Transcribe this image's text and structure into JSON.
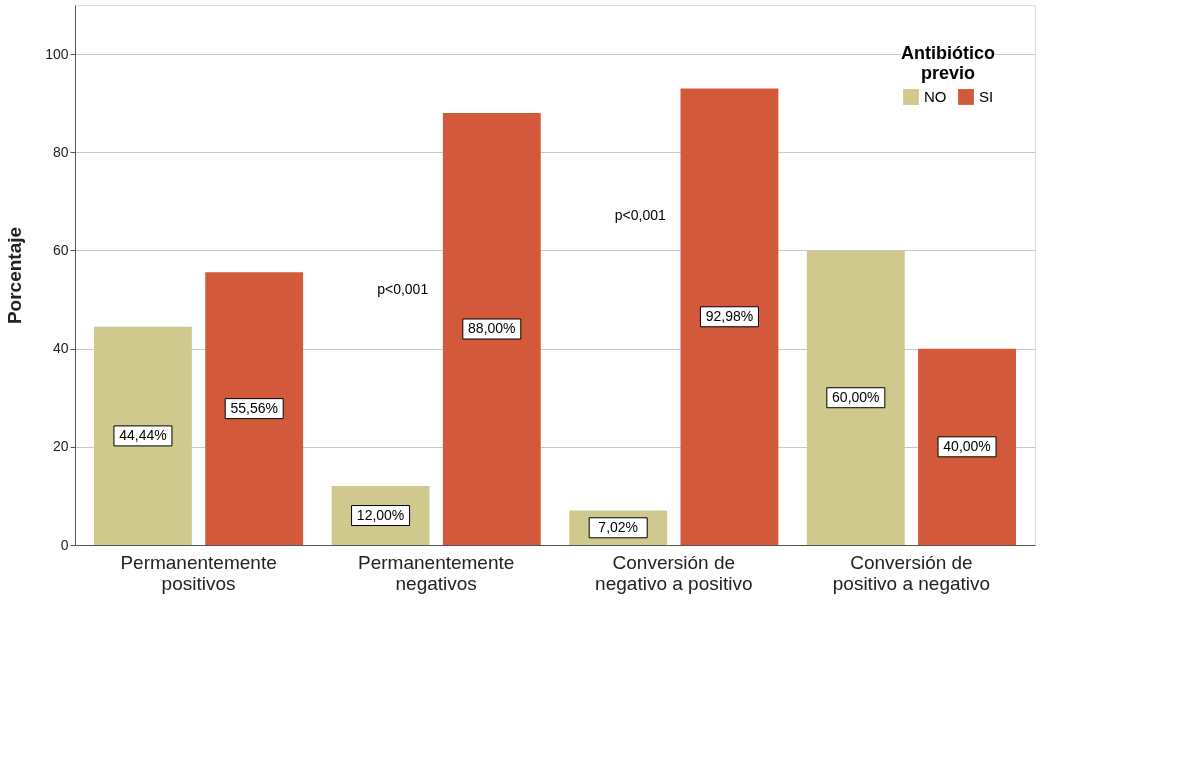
{
  "chart_data": {
    "type": "bar",
    "ylabel": "Porcentaje",
    "legend_title": "Antibiótico previo",
    "categories": [
      "Permanentemente\npositivos",
      "Permanentemente\nnegativos",
      "Conversión de\nnegativo a positivo",
      "Conversión de\npositivo a negativo"
    ],
    "series": [
      {
        "name": "NO",
        "color": "#d0c98e",
        "values": [
          44.44,
          12.0,
          7.02,
          60.0
        ],
        "value_labels": [
          "44,44%",
          "12,00%",
          "7,02%",
          "60,00%"
        ]
      },
      {
        "name": "SI",
        "color": "#d3593b",
        "values": [
          55.56,
          88.0,
          92.98,
          40.0
        ],
        "value_labels": [
          "55,56%",
          "88,00%",
          "92,98%",
          "40,00%"
        ]
      }
    ],
    "ylim": [
      0,
      110
    ],
    "yticks": [
      0,
      20,
      40,
      60,
      80,
      100
    ],
    "grid": "y",
    "legend": "top right",
    "annotations": [
      "p<0,001",
      "p<0,001"
    ]
  }
}
